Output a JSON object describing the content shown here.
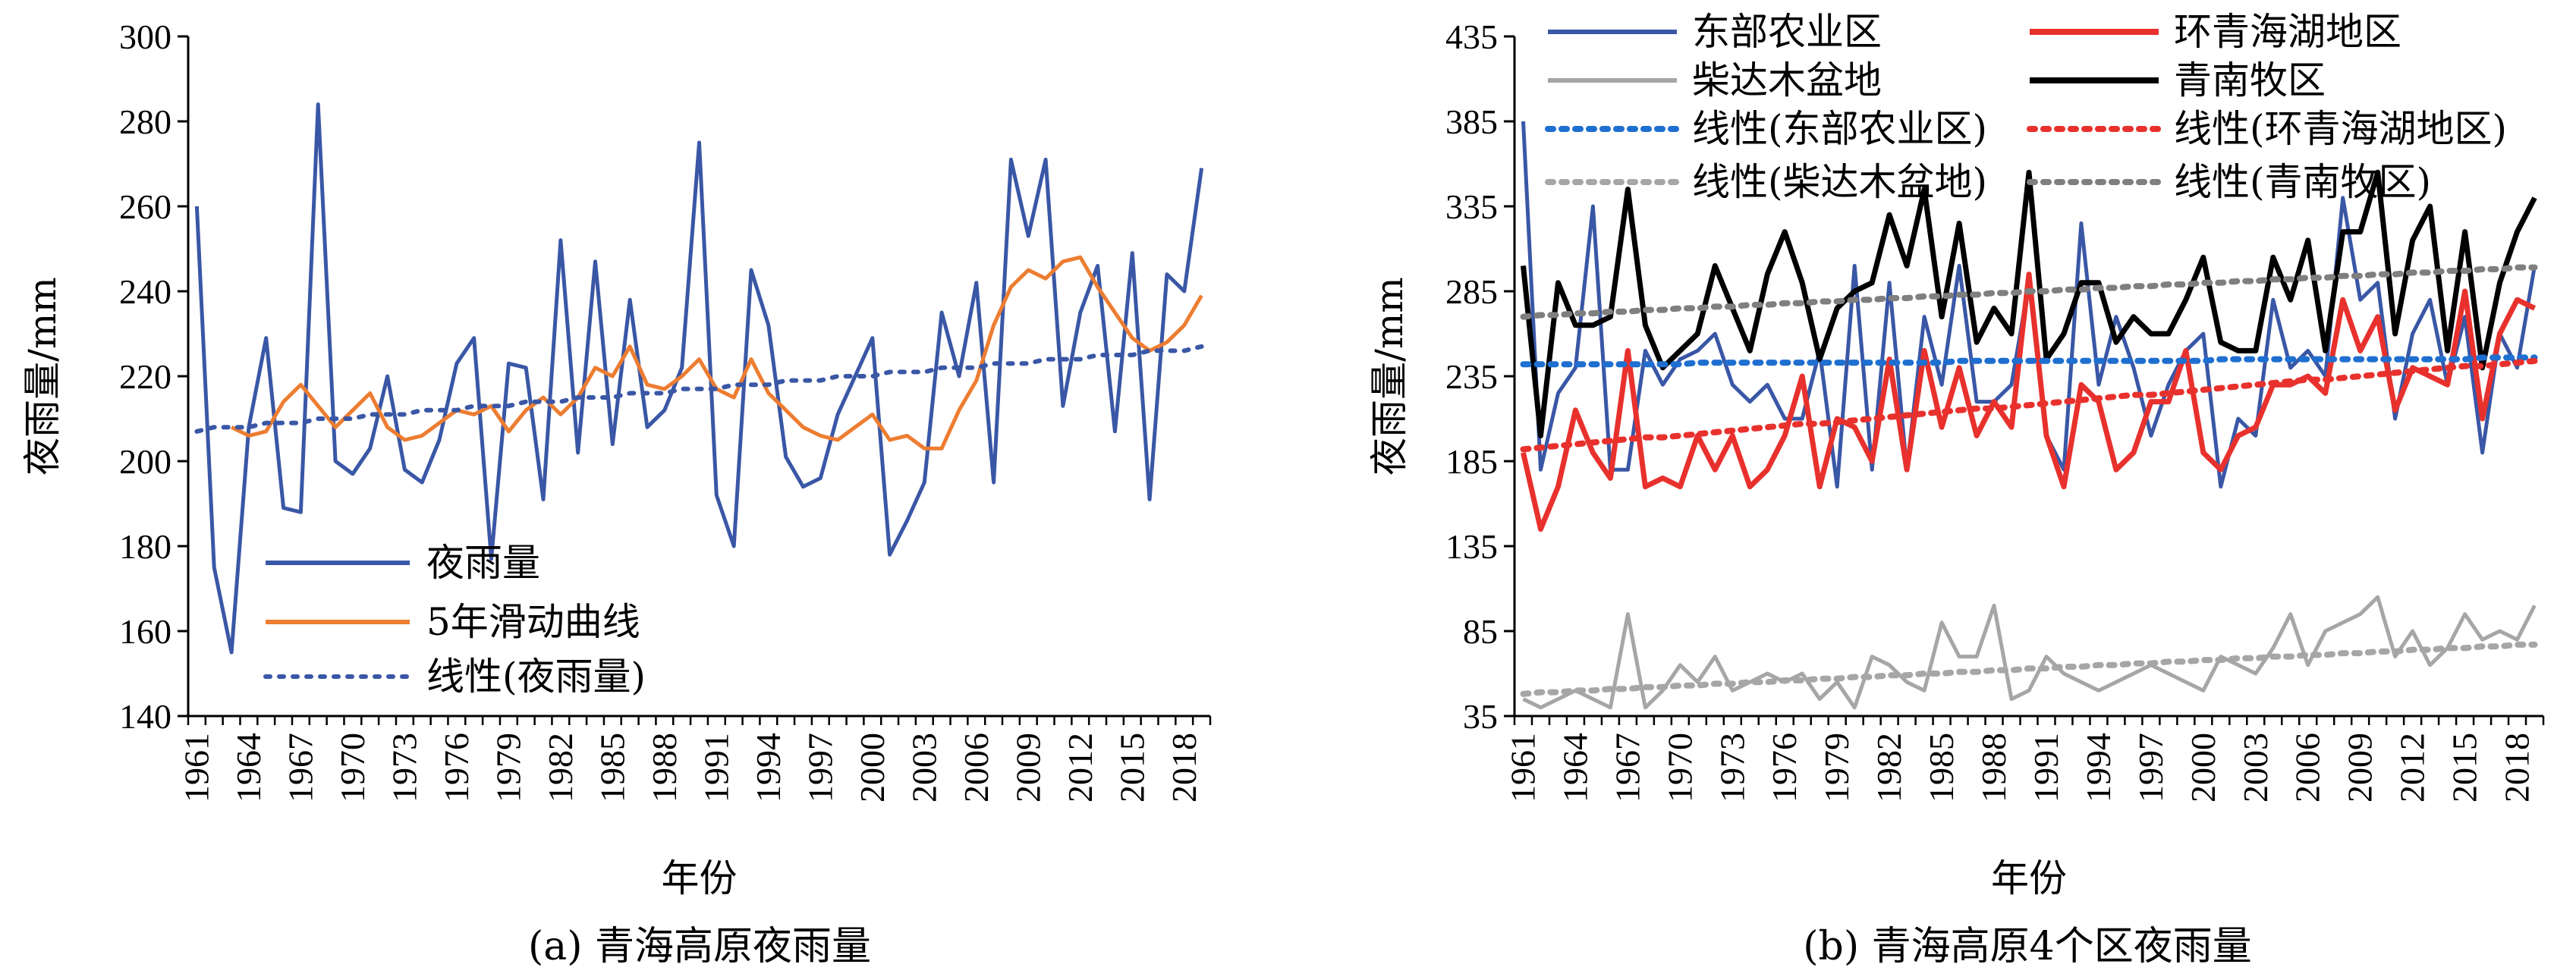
{
  "chart_data": [
    {
      "type": "line",
      "caption": "(a) 青海高原夜雨量",
      "xlabel": "年份",
      "ylabel": "夜雨量/mm",
      "ylim": [
        140,
        300
      ],
      "yticks": [
        140,
        160,
        180,
        200,
        220,
        240,
        260,
        280,
        300
      ],
      "xticks": [
        "1961",
        "1964",
        "1967",
        "1970",
        "1973",
        "1976",
        "1979",
        "1982",
        "1985",
        "1988",
        "1991",
        "1994",
        "1997",
        "2000",
        "2003",
        "2006",
        "2009",
        "2012",
        "2015",
        "2018"
      ],
      "grid": false,
      "legend_position": "bottom-left",
      "x_start": 1961,
      "series": [
        {
          "name": "夜雨量",
          "style": "solid",
          "color": "#3a57a6",
          "values": [
            260,
            175,
            155,
            208,
            229,
            189,
            188,
            284,
            200,
            197,
            203,
            220,
            198,
            195,
            205,
            223,
            229,
            177,
            223,
            222,
            191,
            252,
            202,
            247,
            204,
            238,
            208,
            212,
            222,
            275,
            192,
            180,
            245,
            232,
            201,
            194,
            196,
            211,
            220,
            229,
            178,
            186,
            195,
            235,
            220,
            242,
            195,
            271,
            253,
            271,
            213,
            235,
            246,
            207,
            249,
            191,
            244,
            240,
            269
          ]
        },
        {
          "name": "5年滑动曲线",
          "style": "solid",
          "color": "#ed7d31",
          "values": [
            null,
            null,
            208,
            206,
            207,
            214,
            218,
            213,
            208,
            212,
            216,
            208,
            205,
            206,
            209,
            212,
            211,
            213,
            207,
            212,
            215,
            211,
            215,
            222,
            220,
            227,
            218,
            217,
            220,
            224,
            217,
            215,
            224,
            216,
            212,
            208,
            206,
            205,
            208,
            211,
            205,
            206,
            203,
            203,
            212,
            219,
            232,
            241,
            245,
            243,
            247,
            248,
            241,
            235,
            229,
            226,
            228,
            232,
            239
          ]
        },
        {
          "name": "线性(夜雨量)",
          "style": "dotted",
          "color": "#3a57a6",
          "values": [
            207,
            208,
            208,
            208,
            209,
            209,
            209,
            210,
            210,
            210,
            211,
            211,
            211,
            212,
            212,
            212,
            213,
            213,
            213,
            214,
            214,
            214,
            215,
            215,
            215,
            216,
            216,
            216,
            217,
            217,
            217,
            218,
            218,
            218,
            219,
            219,
            219,
            220,
            220,
            220,
            221,
            221,
            221,
            222,
            222,
            222,
            223,
            223,
            223,
            224,
            224,
            224,
            225,
            225,
            225,
            226,
            226,
            226,
            227
          ]
        }
      ]
    },
    {
      "type": "line",
      "caption": "(b) 青海高原4个区夜雨量",
      "xlabel": "年份",
      "ylabel": "夜雨量/mm",
      "ylim": [
        35,
        435
      ],
      "yticks": [
        35,
        85,
        135,
        185,
        235,
        285,
        335,
        385,
        435
      ],
      "xticks": [
        "1961",
        "1964",
        "1967",
        "1970",
        "1973",
        "1976",
        "1979",
        "1982",
        "1985",
        "1988",
        "1991",
        "1994",
        "1997",
        "2000",
        "2003",
        "2006",
        "2009",
        "2012",
        "2015",
        "2018"
      ],
      "grid": false,
      "legend_position": "top",
      "x_start": 1961,
      "series": [
        {
          "name": "东部农业区",
          "style": "solid",
          "color": "#3a57a6",
          "values": [
            385,
            180,
            225,
            240,
            335,
            180,
            180,
            250,
            230,
            245,
            250,
            260,
            230,
            220,
            230,
            210,
            210,
            250,
            170,
            300,
            180,
            290,
            180,
            270,
            230,
            300,
            220,
            220,
            230,
            290,
            200,
            180,
            325,
            230,
            270,
            240,
            200,
            230,
            250,
            260,
            170,
            210,
            200,
            280,
            240,
            250,
            235,
            340,
            280,
            290,
            210,
            260,
            280,
            230,
            270,
            190,
            260,
            240,
            300
          ]
        },
        {
          "name": "环青海湖地区",
          "style": "solid",
          "color": "#e8312d",
          "values": [
            190,
            145,
            170,
            215,
            190,
            175,
            250,
            170,
            175,
            170,
            200,
            180,
            200,
            170,
            180,
            200,
            235,
            170,
            210,
            205,
            185,
            245,
            180,
            250,
            205,
            240,
            200,
            220,
            205,
            295,
            200,
            170,
            230,
            220,
            180,
            190,
            220,
            220,
            250,
            190,
            180,
            200,
            205,
            230,
            230,
            235,
            225,
            280,
            250,
            270,
            215,
            240,
            235,
            230,
            285,
            210,
            260,
            280,
            275
          ]
        },
        {
          "name": "柴达木盆地",
          "style": "solid",
          "color": "#a6a6a6",
          "values": [
            45,
            40,
            45,
            50,
            45,
            40,
            95,
            40,
            50,
            65,
            55,
            70,
            50,
            55,
            60,
            55,
            60,
            45,
            55,
            40,
            70,
            65,
            55,
            50,
            90,
            70,
            70,
            100,
            45,
            50,
            70,
            60,
            55,
            50,
            55,
            60,
            65,
            60,
            55,
            50,
            70,
            65,
            60,
            75,
            95,
            65,
            85,
            90,
            95,
            105,
            70,
            85,
            65,
            75,
            95,
            80,
            85,
            80,
            100
          ]
        },
        {
          "name": "青南牧区",
          "style": "solid",
          "color": "#000000",
          "values": [
            300,
            200,
            290,
            265,
            265,
            270,
            345,
            265,
            240,
            250,
            260,
            300,
            275,
            250,
            295,
            320,
            290,
            245,
            275,
            285,
            290,
            330,
            300,
            345,
            270,
            325,
            255,
            275,
            260,
            355,
            245,
            260,
            290,
            290,
            255,
            270,
            260,
            260,
            280,
            305,
            255,
            250,
            250,
            305,
            280,
            315,
            250,
            320,
            320,
            355,
            260,
            315,
            335,
            250,
            320,
            240,
            290,
            320,
            340
          ]
        },
        {
          "name": "线性(东部农业区)",
          "style": "dotted",
          "color": "#1f6fd0",
          "values": [
            242,
            242,
            242,
            242,
            242,
            242,
            242,
            242,
            242,
            242,
            243,
            243,
            243,
            243,
            243,
            243,
            243,
            243,
            243,
            243,
            243,
            243,
            243,
            243,
            243,
            244,
            244,
            244,
            244,
            244,
            244,
            244,
            244,
            244,
            244,
            244,
            244,
            244,
            244,
            244,
            245,
            245,
            245,
            245,
            245,
            245,
            245,
            245,
            245,
            245,
            245,
            245,
            245,
            245,
            245,
            246,
            246,
            246,
            246
          ]
        },
        {
          "name": "线性(环青海湖地区)",
          "style": "dotted",
          "color": "#e8312d",
          "values": [
            192,
            193,
            194,
            195,
            196,
            197,
            198,
            199,
            199,
            200,
            201,
            202,
            203,
            204,
            205,
            206,
            207,
            207,
            208,
            209,
            210,
            211,
            212,
            213,
            214,
            215,
            216,
            216,
            217,
            218,
            219,
            220,
            221,
            222,
            223,
            224,
            224,
            225,
            226,
            227,
            228,
            229,
            230,
            231,
            232,
            233,
            233,
            234,
            235,
            236,
            237,
            238,
            239,
            240,
            241,
            241,
            242,
            243,
            244
          ]
        },
        {
          "name": "线性(柴达木盆地)",
          "style": "dotted",
          "color": "#a6a6a6",
          "values": [
            48,
            49,
            49,
            50,
            50,
            51,
            51,
            52,
            52,
            53,
            53,
            54,
            54,
            55,
            55,
            56,
            56,
            57,
            57,
            58,
            58,
            59,
            59,
            60,
            60,
            61,
            61,
            62,
            62,
            63,
            63,
            64,
            64,
            65,
            65,
            66,
            66,
            67,
            67,
            68,
            68,
            69,
            69,
            70,
            70,
            71,
            71,
            72,
            72,
            73,
            73,
            74,
            74,
            75,
            75,
            76,
            76,
            77,
            77
          ]
        },
        {
          "name": "线性(青南牧区)",
          "style": "dotted",
          "color": "#7f7f7f",
          "values": [
            270,
            271,
            271,
            272,
            272,
            273,
            273,
            274,
            274,
            275,
            275,
            276,
            276,
            277,
            277,
            278,
            278,
            279,
            279,
            280,
            280,
            281,
            281,
            282,
            282,
            283,
            283,
            284,
            284,
            285,
            285,
            286,
            286,
            287,
            287,
            288,
            288,
            289,
            289,
            290,
            290,
            291,
            291,
            292,
            292,
            293,
            293,
            294,
            294,
            295,
            295,
            296,
            296,
            297,
            297,
            298,
            298,
            299,
            299
          ]
        }
      ]
    }
  ]
}
